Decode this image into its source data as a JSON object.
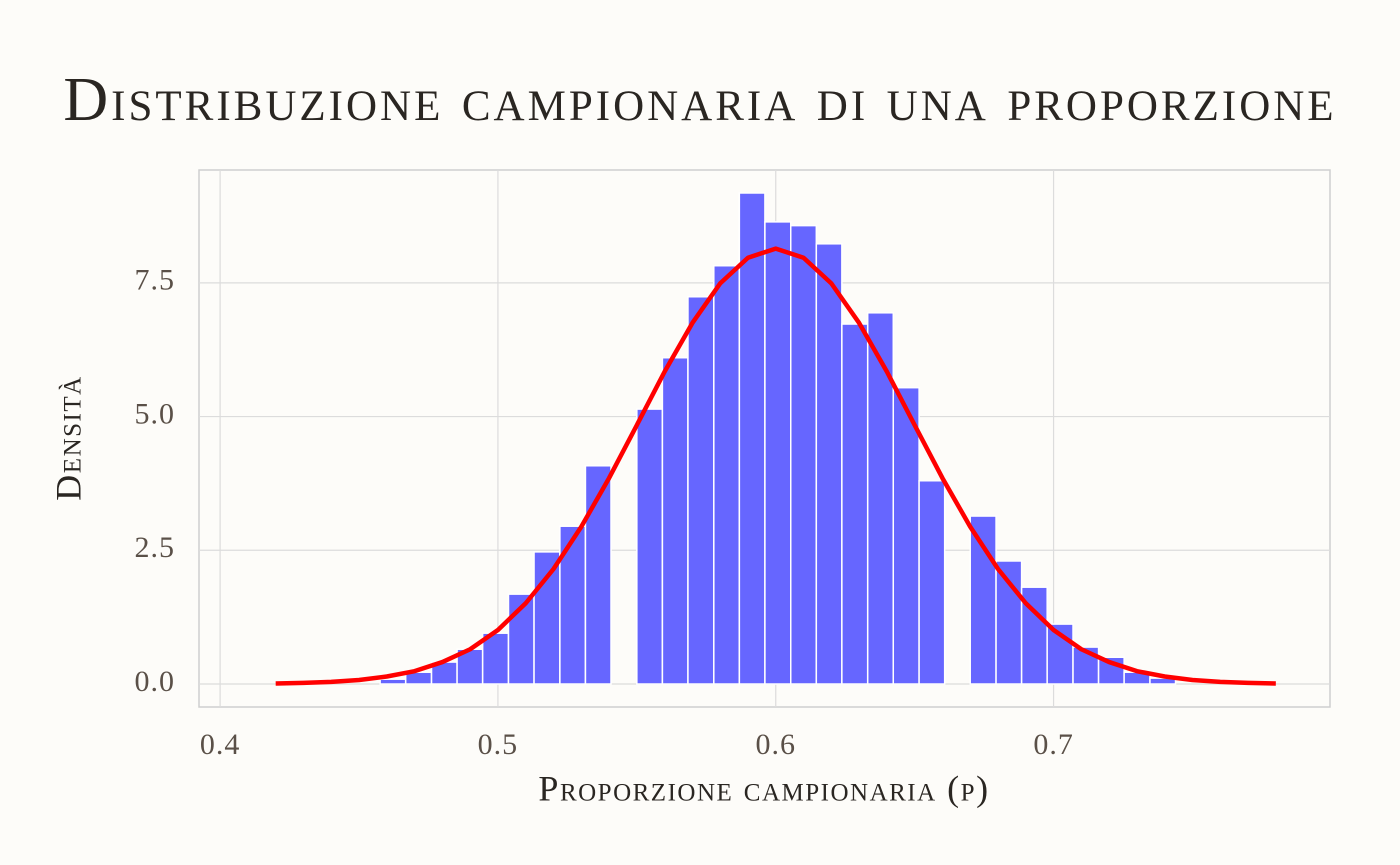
{
  "chart_data": {
    "type": "histogram",
    "title": "Distribuzione campionaria di una proporzione",
    "xlabel": "Proporzione campionaria (p)",
    "ylabel": "Densità",
    "bins": [
      0.4576,
      0.4668,
      0.4761,
      0.4853,
      0.4945,
      0.5038,
      0.513,
      0.5223,
      0.5315,
      0.5407,
      0.55,
      0.5592,
      0.5684,
      0.5777,
      0.5869,
      0.5961,
      0.6054,
      0.6146,
      0.6238,
      0.6331,
      0.6423,
      0.6516,
      0.6608,
      0.67,
      0.6793,
      0.6885,
      0.6977,
      0.707,
      0.7162,
      0.7254,
      0.7347,
      0.7439
    ],
    "values": [
      0.09,
      0.22,
      0.41,
      0.65,
      0.95,
      1.68,
      2.47,
      2.95,
      4.08,
      0,
      5.14,
      6.1,
      7.24,
      7.82,
      9.18,
      8.64,
      8.57,
      8.23,
      6.73,
      6.94,
      5.54,
      3.8,
      0,
      3.14,
      2.3,
      1.81,
      1.12,
      0.69,
      0.5,
      0.22,
      0.11
    ],
    "color": "#6666ff",
    "overlay": {
      "type": "line",
      "color": "#ff0000",
      "x": [
        0.42,
        0.43,
        0.44,
        0.45,
        0.46,
        0.47,
        0.48,
        0.49,
        0.5,
        0.51,
        0.52,
        0.53,
        0.54,
        0.55,
        0.56,
        0.57,
        0.58,
        0.59,
        0.6,
        0.61,
        0.62,
        0.63,
        0.64,
        0.65,
        0.66,
        0.67,
        0.68,
        0.69,
        0.7,
        0.71,
        0.72,
        0.73,
        0.74,
        0.75,
        0.76,
        0.77,
        0.78
      ],
      "values": [
        0.01,
        0.02,
        0.039,
        0.075,
        0.14,
        0.24,
        0.41,
        0.65,
        1.01,
        1.51,
        2.15,
        2.94,
        3.85,
        4.84,
        5.84,
        6.75,
        7.49,
        7.97,
        8.14,
        7.97,
        7.49,
        6.75,
        5.84,
        4.84,
        3.85,
        2.94,
        2.15,
        1.51,
        1.01,
        0.65,
        0.41,
        0.24,
        0.14,
        0.075,
        0.039,
        0.02,
        0.01
      ]
    },
    "xlim": [
      0.3924,
      0.7995
    ],
    "ylim": [
      -0.43,
      9.61
    ],
    "xticks": [
      0.4,
      0.5,
      0.6,
      0.7
    ],
    "yticks": [
      {
        "value": 0,
        "label": "0.0"
      },
      2.5,
      {
        "value": 5,
        "label": "5.0"
      },
      7.5
    ],
    "grid": true
  }
}
